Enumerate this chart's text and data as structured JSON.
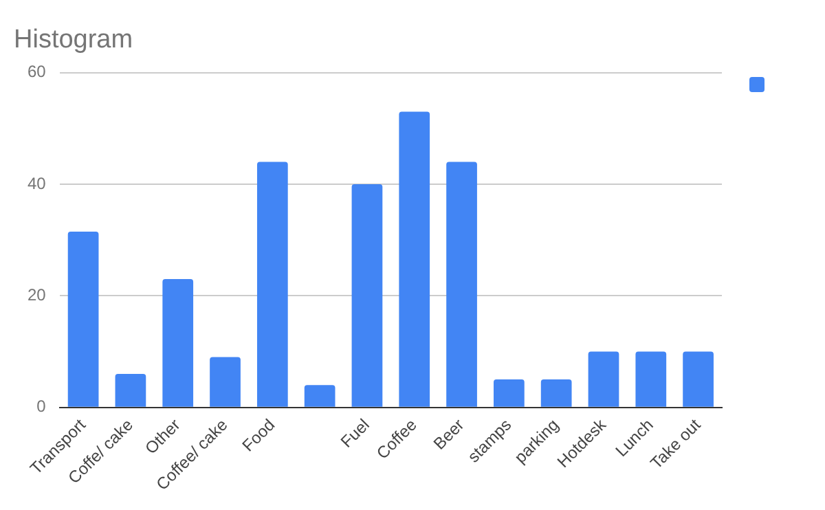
{
  "chart_data": {
    "type": "bar",
    "title": "Histogram",
    "categories": [
      "Transport",
      "Coffe/ cake",
      "Other",
      "Coffee/ cake",
      "Food",
      null,
      "Fuel",
      "Coffee",
      "Beer",
      "stamps",
      "parking",
      "Hotdesk",
      "Lunch",
      "Take out"
    ],
    "series": [
      {
        "color": "#4285f4",
        "values": [
          31.5,
          6,
          23,
          9,
          44,
          4,
          40,
          53,
          44,
          5,
          5,
          10,
          10,
          10
        ]
      }
    ],
    "ylim": [
      0,
      60
    ],
    "yticks": [
      0,
      20,
      40,
      60
    ],
    "grid": "y"
  }
}
